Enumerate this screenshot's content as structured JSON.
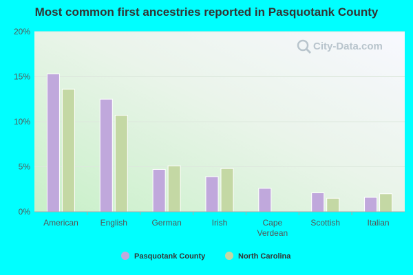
{
  "chart_data": {
    "type": "bar",
    "title": "Most common first ancestries reported in Pasquotank County",
    "categories": [
      "American",
      "English",
      "German",
      "Irish",
      "Cape\nVerdean",
      "Scottish",
      "Italian"
    ],
    "series": [
      {
        "name": "Pasquotank County",
        "color": "#c0a8dc",
        "values": [
          15.3,
          12.5,
          4.7,
          3.9,
          2.6,
          2.1,
          1.6
        ]
      },
      {
        "name": "North Carolina",
        "color": "#c4d8a4",
        "values": [
          13.6,
          10.7,
          5.1,
          4.8,
          null,
          1.5,
          2.0
        ]
      }
    ],
    "ylim": [
      0,
      20
    ],
    "yticks": [
      0,
      5,
      10,
      15,
      20
    ],
    "ytick_suffix": "%",
    "grid": true,
    "legend": "bottom"
  },
  "watermark": {
    "text": "City-Data.com",
    "icon": "magnifier-icon"
  }
}
